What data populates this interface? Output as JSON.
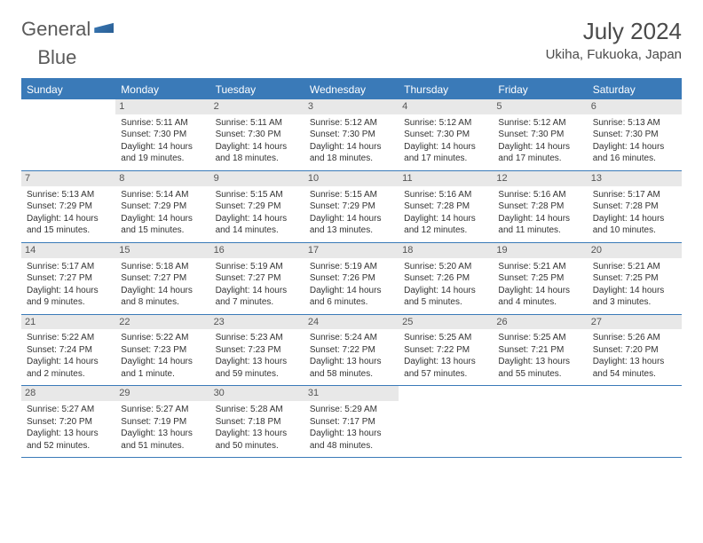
{
  "logo": {
    "text1": "General",
    "text2": "Blue"
  },
  "title": "July 2024",
  "location": "Ukiha, Fukuoka, Japan",
  "colors": {
    "header_bg": "#3a7ab8",
    "header_text": "#ffffff",
    "daynum_bg": "#e8e8e8",
    "border": "#3a7ab8"
  },
  "day_headers": [
    "Sunday",
    "Monday",
    "Tuesday",
    "Wednesday",
    "Thursday",
    "Friday",
    "Saturday"
  ],
  "weeks": [
    [
      null,
      {
        "n": "1",
        "sr": "Sunrise: 5:11 AM",
        "ss": "Sunset: 7:30 PM",
        "d1": "Daylight: 14 hours",
        "d2": "and 19 minutes."
      },
      {
        "n": "2",
        "sr": "Sunrise: 5:11 AM",
        "ss": "Sunset: 7:30 PM",
        "d1": "Daylight: 14 hours",
        "d2": "and 18 minutes."
      },
      {
        "n": "3",
        "sr": "Sunrise: 5:12 AM",
        "ss": "Sunset: 7:30 PM",
        "d1": "Daylight: 14 hours",
        "d2": "and 18 minutes."
      },
      {
        "n": "4",
        "sr": "Sunrise: 5:12 AM",
        "ss": "Sunset: 7:30 PM",
        "d1": "Daylight: 14 hours",
        "d2": "and 17 minutes."
      },
      {
        "n": "5",
        "sr": "Sunrise: 5:12 AM",
        "ss": "Sunset: 7:30 PM",
        "d1": "Daylight: 14 hours",
        "d2": "and 17 minutes."
      },
      {
        "n": "6",
        "sr": "Sunrise: 5:13 AM",
        "ss": "Sunset: 7:30 PM",
        "d1": "Daylight: 14 hours",
        "d2": "and 16 minutes."
      }
    ],
    [
      {
        "n": "7",
        "sr": "Sunrise: 5:13 AM",
        "ss": "Sunset: 7:29 PM",
        "d1": "Daylight: 14 hours",
        "d2": "and 15 minutes."
      },
      {
        "n": "8",
        "sr": "Sunrise: 5:14 AM",
        "ss": "Sunset: 7:29 PM",
        "d1": "Daylight: 14 hours",
        "d2": "and 15 minutes."
      },
      {
        "n": "9",
        "sr": "Sunrise: 5:15 AM",
        "ss": "Sunset: 7:29 PM",
        "d1": "Daylight: 14 hours",
        "d2": "and 14 minutes."
      },
      {
        "n": "10",
        "sr": "Sunrise: 5:15 AM",
        "ss": "Sunset: 7:29 PM",
        "d1": "Daylight: 14 hours",
        "d2": "and 13 minutes."
      },
      {
        "n": "11",
        "sr": "Sunrise: 5:16 AM",
        "ss": "Sunset: 7:28 PM",
        "d1": "Daylight: 14 hours",
        "d2": "and 12 minutes."
      },
      {
        "n": "12",
        "sr": "Sunrise: 5:16 AM",
        "ss": "Sunset: 7:28 PM",
        "d1": "Daylight: 14 hours",
        "d2": "and 11 minutes."
      },
      {
        "n": "13",
        "sr": "Sunrise: 5:17 AM",
        "ss": "Sunset: 7:28 PM",
        "d1": "Daylight: 14 hours",
        "d2": "and 10 minutes."
      }
    ],
    [
      {
        "n": "14",
        "sr": "Sunrise: 5:17 AM",
        "ss": "Sunset: 7:27 PM",
        "d1": "Daylight: 14 hours",
        "d2": "and 9 minutes."
      },
      {
        "n": "15",
        "sr": "Sunrise: 5:18 AM",
        "ss": "Sunset: 7:27 PM",
        "d1": "Daylight: 14 hours",
        "d2": "and 8 minutes."
      },
      {
        "n": "16",
        "sr": "Sunrise: 5:19 AM",
        "ss": "Sunset: 7:27 PM",
        "d1": "Daylight: 14 hours",
        "d2": "and 7 minutes."
      },
      {
        "n": "17",
        "sr": "Sunrise: 5:19 AM",
        "ss": "Sunset: 7:26 PM",
        "d1": "Daylight: 14 hours",
        "d2": "and 6 minutes."
      },
      {
        "n": "18",
        "sr": "Sunrise: 5:20 AM",
        "ss": "Sunset: 7:26 PM",
        "d1": "Daylight: 14 hours",
        "d2": "and 5 minutes."
      },
      {
        "n": "19",
        "sr": "Sunrise: 5:21 AM",
        "ss": "Sunset: 7:25 PM",
        "d1": "Daylight: 14 hours",
        "d2": "and 4 minutes."
      },
      {
        "n": "20",
        "sr": "Sunrise: 5:21 AM",
        "ss": "Sunset: 7:25 PM",
        "d1": "Daylight: 14 hours",
        "d2": "and 3 minutes."
      }
    ],
    [
      {
        "n": "21",
        "sr": "Sunrise: 5:22 AM",
        "ss": "Sunset: 7:24 PM",
        "d1": "Daylight: 14 hours",
        "d2": "and 2 minutes."
      },
      {
        "n": "22",
        "sr": "Sunrise: 5:22 AM",
        "ss": "Sunset: 7:23 PM",
        "d1": "Daylight: 14 hours",
        "d2": "and 1 minute."
      },
      {
        "n": "23",
        "sr": "Sunrise: 5:23 AM",
        "ss": "Sunset: 7:23 PM",
        "d1": "Daylight: 13 hours",
        "d2": "and 59 minutes."
      },
      {
        "n": "24",
        "sr": "Sunrise: 5:24 AM",
        "ss": "Sunset: 7:22 PM",
        "d1": "Daylight: 13 hours",
        "d2": "and 58 minutes."
      },
      {
        "n": "25",
        "sr": "Sunrise: 5:25 AM",
        "ss": "Sunset: 7:22 PM",
        "d1": "Daylight: 13 hours",
        "d2": "and 57 minutes."
      },
      {
        "n": "26",
        "sr": "Sunrise: 5:25 AM",
        "ss": "Sunset: 7:21 PM",
        "d1": "Daylight: 13 hours",
        "d2": "and 55 minutes."
      },
      {
        "n": "27",
        "sr": "Sunrise: 5:26 AM",
        "ss": "Sunset: 7:20 PM",
        "d1": "Daylight: 13 hours",
        "d2": "and 54 minutes."
      }
    ],
    [
      {
        "n": "28",
        "sr": "Sunrise: 5:27 AM",
        "ss": "Sunset: 7:20 PM",
        "d1": "Daylight: 13 hours",
        "d2": "and 52 minutes."
      },
      {
        "n": "29",
        "sr": "Sunrise: 5:27 AM",
        "ss": "Sunset: 7:19 PM",
        "d1": "Daylight: 13 hours",
        "d2": "and 51 minutes."
      },
      {
        "n": "30",
        "sr": "Sunrise: 5:28 AM",
        "ss": "Sunset: 7:18 PM",
        "d1": "Daylight: 13 hours",
        "d2": "and 50 minutes."
      },
      {
        "n": "31",
        "sr": "Sunrise: 5:29 AM",
        "ss": "Sunset: 7:17 PM",
        "d1": "Daylight: 13 hours",
        "d2": "and 48 minutes."
      },
      null,
      null,
      null
    ]
  ]
}
